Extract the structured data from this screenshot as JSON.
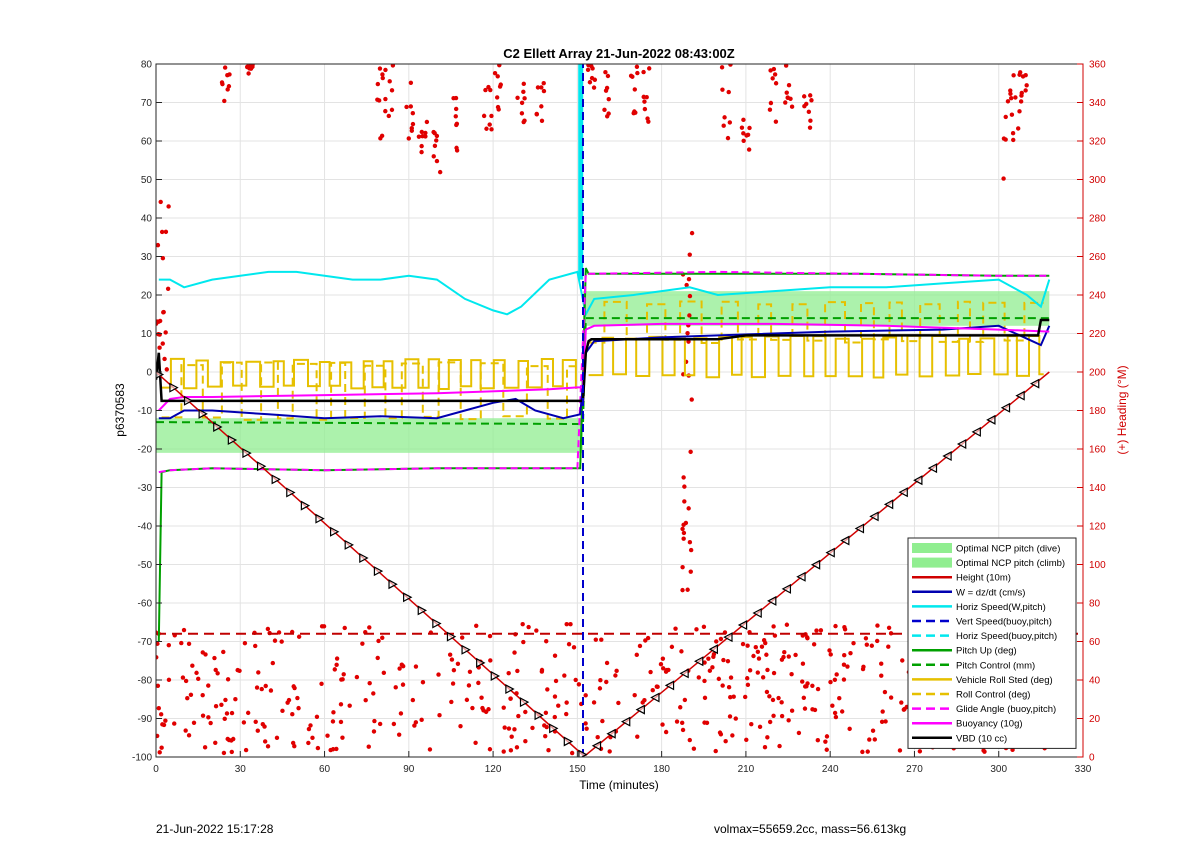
{
  "chart_data": {
    "type": "line",
    "title": "C2 Ellett Array 21-Jun-2022 08:43:00Z",
    "xlabel": "Time (minutes)",
    "ylabel": "p6370583",
    "y2label": "(+) Heading (°M)",
    "xlim": [
      0,
      330
    ],
    "ylim": [
      -100,
      80
    ],
    "y2lim": [
      0,
      360
    ],
    "xticks": [
      0,
      30,
      60,
      90,
      120,
      150,
      180,
      210,
      240,
      270,
      300,
      330
    ],
    "yticks": [
      -100,
      -90,
      -80,
      -70,
      -60,
      -50,
      -40,
      -30,
      -20,
      -10,
      0,
      10,
      20,
      30,
      40,
      50,
      60,
      70,
      80
    ],
    "y2ticks": [
      0,
      20,
      40,
      60,
      80,
      100,
      120,
      140,
      160,
      180,
      200,
      220,
      240,
      260,
      280,
      300,
      320,
      340,
      360
    ],
    "grid": true,
    "legend_position": "bottom-right",
    "legend": [
      {
        "label": "Optimal NCP pitch (dive)",
        "color": "#90ee90",
        "style": "patch"
      },
      {
        "label": "Optimal NCP pitch (climb)",
        "color": "#90ee90",
        "style": "patch"
      },
      {
        "label": "Height (10m)",
        "color": "#d00000",
        "style": "solid"
      },
      {
        "label": "W = dz/dt (cm/s)",
        "color": "#0000b0",
        "style": "solid"
      },
      {
        "label": "Horiz Speed(W,pitch)",
        "color": "#00e8ee",
        "style": "solid"
      },
      {
        "label": "Vert Speed(buoy,pitch)",
        "color": "#0000cc",
        "style": "dashed"
      },
      {
        "label": "Horiz Speed(buoy,pitch)",
        "color": "#00e8ee",
        "style": "dashed"
      },
      {
        "label": "Pitch Up (deg)",
        "color": "#00a000",
        "style": "solid"
      },
      {
        "label": "Pitch Control (mm)",
        "color": "#00a000",
        "style": "dashed"
      },
      {
        "label": "Vehicle Roll Sted (deg)",
        "color": "#e6c000",
        "style": "solid"
      },
      {
        "label": "Roll Control (deg)",
        "color": "#e6c000",
        "style": "dashed"
      },
      {
        "label": "Glide Angle (buoy,pitch)",
        "color": "#ff00ff",
        "style": "dashed"
      },
      {
        "label": "Buoyancy (10g)",
        "color": "#ff00ff",
        "style": "solid"
      },
      {
        "label": "VBD (10 cc)",
        "color": "#000000",
        "style": "solid"
      }
    ],
    "series": [
      {
        "name": "Height (10m)",
        "axis": "left",
        "x": [
          0,
          152,
          153,
          318
        ],
        "y": [
          0,
          -99.5,
          -99.5,
          0
        ]
      },
      {
        "name": "W = dz/dt (cm/s)",
        "axis": "left",
        "x": [
          1,
          5,
          10,
          20,
          40,
          60,
          80,
          100,
          110,
          120,
          128,
          135,
          145,
          151,
          153,
          156,
          180,
          200,
          240,
          280,
          300,
          312,
          315,
          318
        ],
        "y": [
          -12,
          -12,
          -10,
          -10,
          -11,
          -12,
          -11.5,
          -12,
          -10,
          -8,
          -7,
          -10,
          -12,
          -11,
          5,
          8,
          9,
          9.5,
          10.5,
          11,
          12,
          8,
          7,
          12
        ]
      },
      {
        "name": "Horiz Speed(W,pitch)",
        "axis": "left",
        "x": [
          1,
          5,
          10,
          20,
          30,
          40,
          50,
          60,
          70,
          80,
          90,
          100,
          110,
          120,
          125,
          130,
          140,
          150,
          153,
          156,
          170,
          180,
          190,
          200,
          220,
          240,
          260,
          280,
          300,
          310,
          315,
          318
        ],
        "y": [
          24,
          24,
          22,
          24,
          25,
          26,
          26,
          25,
          24,
          24,
          25,
          24,
          19,
          16,
          15,
          17,
          24,
          26,
          15,
          19,
          20,
          21,
          22,
          20,
          21,
          22,
          22,
          23,
          24,
          20,
          17,
          24
        ]
      },
      {
        "name": "Vert Speed(buoy,pitch)",
        "axis": "left",
        "x": [
          152,
          152
        ],
        "y": [
          -100,
          80
        ]
      },
      {
        "name": "Pitch Up (deg)",
        "axis": "left",
        "x": [
          1,
          2,
          5,
          20,
          60,
          100,
          150,
          151,
          152,
          153,
          154,
          200,
          250,
          300,
          318
        ],
        "y": [
          -70,
          -26,
          -25.5,
          -25,
          -25.5,
          -25,
          -25,
          -25,
          0,
          27,
          25.5,
          25.5,
          25.5,
          25,
          25
        ]
      },
      {
        "name": "Pitch Control (mm)",
        "axis": "left",
        "x": [
          0,
          150,
          152,
          153,
          318
        ],
        "y": [
          -13,
          -13.5,
          -13.5,
          14,
          14
        ]
      },
      {
        "name": "Glide Angle (buoy,pitch)",
        "axis": "left",
        "x": [
          1,
          5,
          20,
          60,
          100,
          150,
          153,
          154,
          200,
          250,
          300,
          318
        ],
        "y": [
          -26,
          -25.5,
          -25,
          -25.5,
          -25,
          -25,
          25.5,
          25.5,
          26,
          25.5,
          25,
          25
        ]
      },
      {
        "name": "Buoyancy (10g)",
        "axis": "left",
        "x": [
          1,
          5,
          10,
          20,
          60,
          100,
          140,
          150,
          152,
          153,
          156,
          180,
          220,
          260,
          300,
          318
        ],
        "y": [
          -10,
          -7,
          -6.5,
          -6.5,
          -6,
          -5.5,
          -4.5,
          -4,
          -4,
          11,
          12,
          12.5,
          12.5,
          12,
          11,
          10.5
        ]
      },
      {
        "name": "VBD (10 cc)",
        "axis": "left",
        "x": [
          0,
          1,
          2,
          150,
          152,
          153,
          154,
          155,
          200,
          210,
          300,
          314,
          315,
          318
        ],
        "y": [
          -2,
          5,
          -7.5,
          -7.5,
          -7.5,
          5,
          8,
          8.5,
          8.5,
          9.5,
          9.5,
          9.5,
          13.5,
          13.5
        ]
      },
      {
        "name": "Optimal NCP pitch (dive)",
        "axis": "left",
        "x": [
          0,
          152
        ],
        "y_low": [
          -21,
          -21
        ],
        "y_high": [
          -12,
          -12
        ]
      },
      {
        "name": "Optimal NCP pitch (climb)",
        "axis": "left",
        "x": [
          152,
          318
        ],
        "y_low": [
          12,
          12
        ],
        "y_high": [
          21,
          21
        ]
      }
    ],
    "roll_levels": {
      "low": -4,
      "high": 3,
      "up_low": -1,
      "up_high": 4
    },
    "heading_reference_line": 64
  },
  "footer": {
    "left": "21-Jun-2022 15:17:28",
    "right": "volmax=55659.2cc, mass=56.613kg"
  }
}
